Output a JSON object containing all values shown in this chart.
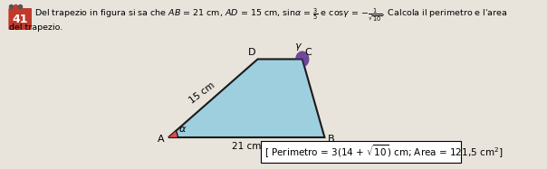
{
  "title_num": "41",
  "title_num_bg": "#c0392b",
  "title_num_fg": "#ffffff",
  "label_AB": "21 cm",
  "label_AD": "15 cm",
  "label_alpha": "α",
  "label_gamma": "γ",
  "label_D": "D",
  "label_C": "C",
  "label_A": "A",
  "label_B": "B",
  "trap_fill": "#9ecfdf",
  "trap_stroke": "#1a1a1a",
  "alpha_fill": "#d44",
  "gamma_fill": "#5b2d8e",
  "background": "#e8e4dc",
  "A": [
    0.0,
    0.0
  ],
  "B": [
    21.0,
    0.0
  ],
  "D": [
    12.0,
    9.0
  ],
  "C": [
    18.0,
    9.0
  ]
}
